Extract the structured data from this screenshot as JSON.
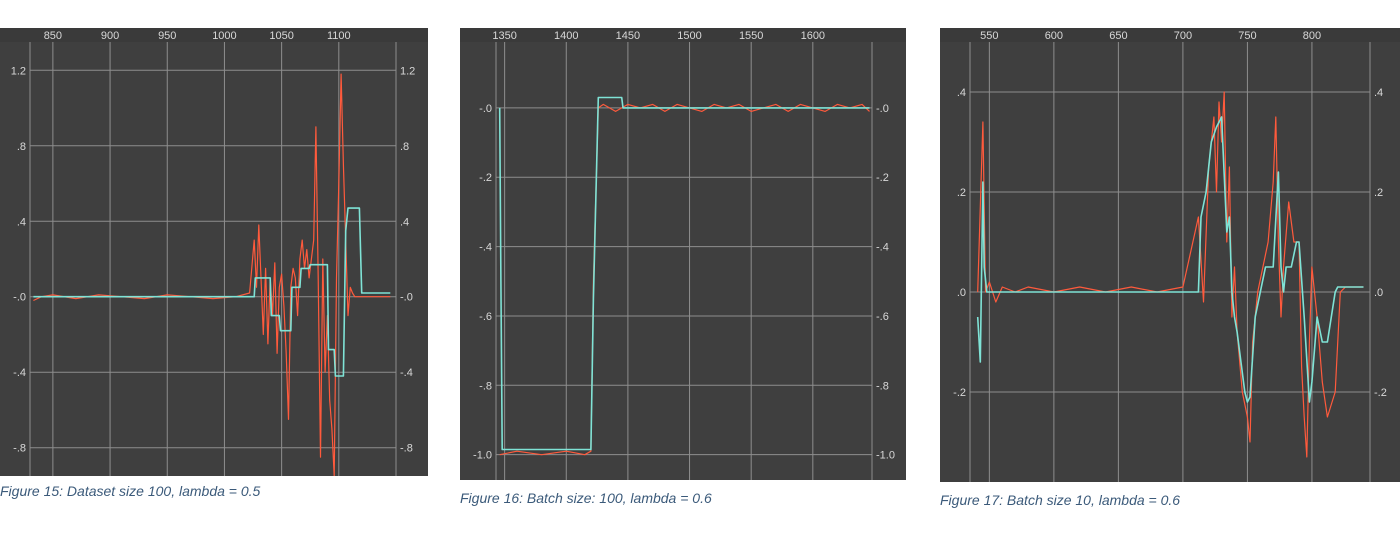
{
  "captions": [
    "Figure 15: Dataset size 100, lambda = 0.5",
    "Figure 16: Batch size: 100, lambda = 0.6",
    "Figure 17: Batch size 10, lambda = 0.6"
  ],
  "colors": {
    "background": "#3f3f3f",
    "grid": "#8e8e8e",
    "tick_text": "#d8d8d8",
    "series_raw": "#ff5a3c",
    "series_smoothed": "#7fe3d6",
    "caption": "#3b5a7a"
  },
  "chart_data": [
    {
      "type": "line",
      "caption": "Figure 15: Dataset size 100, lambda = 0.5",
      "xlim": [
        830,
        1150
      ],
      "ylim": [
        -0.95,
        1.35
      ],
      "xticks": [
        850,
        900,
        950,
        1000,
        1050,
        1100
      ],
      "xtick_labels": [
        "850",
        "900",
        "950",
        "1000",
        "1050",
        "1100"
      ],
      "yticks": [
        1.2,
        0.8,
        0.4,
        0.0,
        -0.4,
        -0.8
      ],
      "ytick_labels": [
        "1.2",
        ".8",
        ".4",
        "-.0",
        "-.4",
        "-.8"
      ],
      "series": [
        {
          "x": [
            833,
            840,
            850,
            870,
            890,
            910,
            930,
            950,
            970,
            990,
            1010,
            1022,
            1026,
            1028,
            1030,
            1032,
            1034,
            1036,
            1038,
            1040,
            1042,
            1044,
            1046,
            1048,
            1050,
            1052,
            1054,
            1056,
            1058,
            1060,
            1062,
            1064,
            1066,
            1068,
            1070,
            1072,
            1074,
            1076,
            1078,
            1080,
            1082,
            1084,
            1086,
            1088,
            1090,
            1092,
            1094,
            1096,
            1098,
            1100,
            1102,
            1104,
            1106,
            1108,
            1110,
            1112,
            1114,
            1116,
            1118,
            1120,
            1122,
            1124,
            1130,
            1140,
            1145
          ],
          "values": [
            -0.02,
            0.0,
            0.01,
            -0.01,
            0.01,
            0.0,
            -0.01,
            0.01,
            0.0,
            -0.01,
            0.0,
            0.02,
            0.3,
            0.05,
            0.38,
            0.1,
            -0.2,
            0.15,
            -0.25,
            0.1,
            -0.1,
            0.18,
            -0.3,
            0.05,
            0.12,
            -0.05,
            -0.3,
            -0.65,
            0.05,
            0.15,
            0.1,
            -0.1,
            0.2,
            0.3,
            0.15,
            0.25,
            0.1,
            0.2,
            0.3,
            0.9,
            0.1,
            -0.85,
            0.2,
            -0.4,
            -0.1,
            -0.55,
            -0.7,
            -0.95,
            0.1,
            0.6,
            1.18,
            0.7,
            0.3,
            -0.1,
            0.05,
            0.02,
            0.0,
            0.0,
            0.0,
            0.0,
            0.0,
            0.0,
            0.0,
            0.0,
            0.0
          ]
        },
        {
          "x": [
            833,
            1000,
            1026,
            1027,
            1040,
            1041,
            1048,
            1049,
            1058,
            1059,
            1066,
            1067,
            1074,
            1075,
            1090,
            1091,
            1096,
            1097,
            1104,
            1106,
            1108,
            1118,
            1120,
            1145
          ],
          "values": [
            0.0,
            0.0,
            0.0,
            0.1,
            0.1,
            -0.1,
            -0.1,
            -0.18,
            -0.18,
            0.05,
            0.05,
            0.15,
            0.15,
            0.17,
            0.17,
            -0.28,
            -0.28,
            -0.42,
            -0.42,
            0.35,
            0.47,
            0.47,
            0.02,
            0.02
          ]
        }
      ]
    },
    {
      "type": "line",
      "caption": "Figure 16: Batch size: 100, lambda = 0.6",
      "xlim": [
        1343,
        1648
      ],
      "ylim": [
        -1.05,
        0.19
      ],
      "xticks": [
        1350,
        1400,
        1450,
        1500,
        1550,
        1600
      ],
      "xtick_labels": [
        "1350",
        "1400",
        "1450",
        "1500",
        "1550",
        "1600"
      ],
      "yticks": [
        0.0,
        -0.2,
        -0.4,
        -0.6,
        -0.8,
        -1.0
      ],
      "ytick_labels": [
        "-.0",
        "-.2",
        "-.4",
        "-.6",
        "-.8",
        "-1.0"
      ],
      "series": [
        {
          "x": [
            1346,
            1360,
            1380,
            1400,
            1415,
            1420,
            1422,
            1426,
            1430,
            1440,
            1450,
            1460,
            1470,
            1480,
            1490,
            1500,
            1510,
            1520,
            1530,
            1540,
            1550,
            1560,
            1570,
            1580,
            1590,
            1600,
            1610,
            1620,
            1630,
            1640,
            1646
          ],
          "values": [
            -1.0,
            -0.99,
            -1.0,
            -0.99,
            -1.0,
            -0.99,
            -0.5,
            0.0,
            0.01,
            -0.01,
            0.01,
            0.0,
            0.01,
            -0.01,
            0.01,
            0.0,
            -0.01,
            0.01,
            0.0,
            0.01,
            -0.01,
            0.0,
            0.01,
            -0.01,
            0.01,
            0.0,
            -0.01,
            0.01,
            0.0,
            0.01,
            -0.01
          ]
        },
        {
          "x": [
            1346,
            1347,
            1348,
            1420,
            1422,
            1426,
            1445,
            1446,
            1646
          ],
          "values": [
            0.0,
            -0.5,
            -0.985,
            -0.985,
            -0.55,
            0.03,
            0.03,
            0.0,
            0.0
          ]
        }
      ]
    },
    {
      "type": "line",
      "caption": "Figure 17: Batch size 10, lambda = 0.6",
      "xlim": [
        535,
        845
      ],
      "ylim": [
        -0.38,
        0.5
      ],
      "xticks": [
        550,
        600,
        650,
        700,
        750,
        800
      ],
      "xtick_labels": [
        "550",
        "600",
        "650",
        "700",
        "750",
        "800"
      ],
      "yticks": [
        0.4,
        0.2,
        0.0,
        -0.2
      ],
      "ytick_labels": [
        ".4",
        ".2",
        ".0",
        "-.2"
      ],
      "series": [
        {
          "x": [
            541,
            545,
            547,
            550,
            555,
            560,
            570,
            580,
            600,
            620,
            640,
            660,
            680,
            700,
            712,
            716,
            720,
            724,
            726,
            728,
            730,
            732,
            734,
            736,
            738,
            740,
            742,
            746,
            750,
            752,
            754,
            758,
            762,
            766,
            770,
            772,
            774,
            776,
            778,
            782,
            786,
            790,
            792,
            794,
            796,
            798,
            800,
            804,
            808,
            812,
            818,
            822,
            826,
            830,
            840
          ],
          "values": [
            0.0,
            0.34,
            0.0,
            0.02,
            -0.02,
            0.01,
            0.0,
            0.01,
            0.0,
            0.01,
            0.0,
            0.01,
            0.0,
            0.01,
            0.15,
            -0.02,
            0.25,
            0.35,
            0.2,
            0.38,
            0.3,
            0.4,
            0.1,
            0.25,
            -0.05,
            0.05,
            -0.08,
            -0.2,
            -0.25,
            -0.3,
            -0.1,
            0.0,
            0.05,
            0.1,
            0.22,
            0.35,
            0.1,
            -0.05,
            0.05,
            0.18,
            0.1,
            0.1,
            -0.15,
            -0.25,
            -0.33,
            -0.1,
            0.05,
            -0.05,
            -0.18,
            -0.25,
            -0.2,
            0.0,
            0.01,
            0.01,
            0.01
          ]
        },
        {
          "x": [
            541,
            543,
            545,
            546,
            548,
            560,
            580,
            600,
            640,
            700,
            712,
            714,
            718,
            722,
            726,
            730,
            734,
            736,
            738,
            740,
            742,
            748,
            750,
            752,
            756,
            760,
            764,
            770,
            774,
            776,
            778,
            780,
            784,
            788,
            790,
            794,
            798,
            800,
            804,
            808,
            812,
            818,
            820,
            822,
            826,
            830,
            840
          ],
          "values": [
            -0.05,
            -0.14,
            0.22,
            0.05,
            0.0,
            0.0,
            0.0,
            0.0,
            0.0,
            0.0,
            0.0,
            0.15,
            0.2,
            0.3,
            0.33,
            0.35,
            0.12,
            0.15,
            0.0,
            -0.05,
            -0.08,
            -0.2,
            -0.22,
            -0.21,
            -0.05,
            0.0,
            0.05,
            0.05,
            0.24,
            0.05,
            0.0,
            0.05,
            0.05,
            0.1,
            0.1,
            -0.05,
            -0.22,
            -0.18,
            -0.05,
            -0.1,
            -0.1,
            0.0,
            0.01,
            0.01,
            0.01,
            0.01,
            0.01
          ]
        }
      ]
    }
  ]
}
